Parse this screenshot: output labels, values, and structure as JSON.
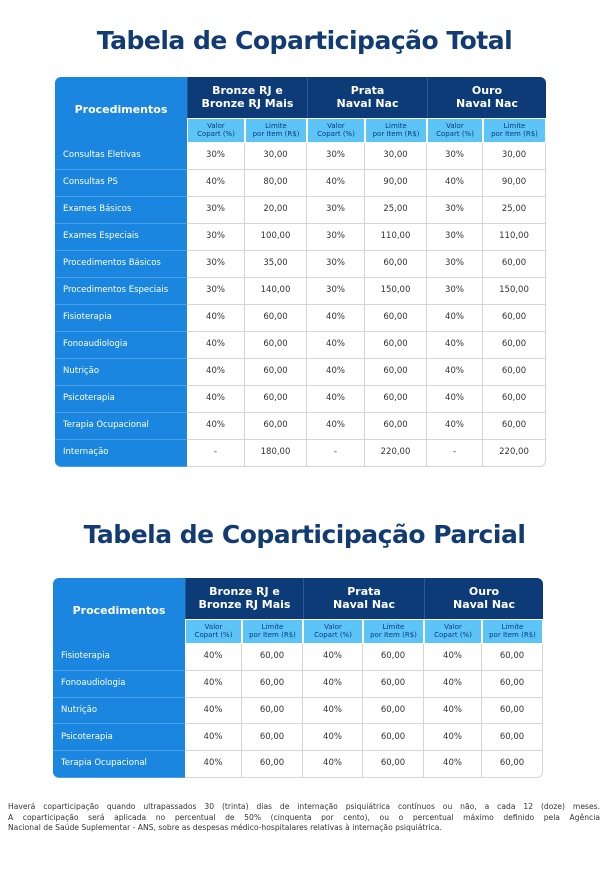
{
  "tables": [
    {
      "title": "Tabela de Coparticipação Total",
      "header": {
        "procedure": "Procedimentos",
        "groups": [
          [
            "Bronze RJ e",
            "Bronze RJ Mais"
          ],
          [
            "Prata",
            "Naval Nac"
          ],
          [
            "Ouro",
            "Naval Nac"
          ]
        ],
        "sub": [
          [
            "Valor",
            "Copart (%)"
          ],
          [
            "Limite",
            "por Item (R$)"
          ]
        ]
      },
      "rows": [
        [
          "Consultas Eletivas",
          "30%",
          "30,00",
          "30%",
          "30,00",
          "30%",
          "30,00"
        ],
        [
          "Consultas PS",
          "40%",
          "80,00",
          "40%",
          "90,00",
          "40%",
          "90,00"
        ],
        [
          "Exames Básicos",
          "30%",
          "20,00",
          "30%",
          "25,00",
          "30%",
          "25,00"
        ],
        [
          "Exames Especiais",
          "30%",
          "100,00",
          "30%",
          "110,00",
          "30%",
          "110,00"
        ],
        [
          "Procedimentos Básicos",
          "30%",
          "35,00",
          "30%",
          "60,00",
          "30%",
          "60,00"
        ],
        [
          "Procedimentos Especiais",
          "30%",
          "140,00",
          "30%",
          "150,00",
          "30%",
          "150,00"
        ],
        [
          "Fisioterapia",
          "40%",
          "60,00",
          "40%",
          "60,00",
          "40%",
          "60,00"
        ],
        [
          "Fonoaudiologia",
          "40%",
          "60,00",
          "40%",
          "60,00",
          "40%",
          "60,00"
        ],
        [
          "Nutrição",
          "40%",
          "60,00",
          "40%",
          "60,00",
          "40%",
          "60,00"
        ],
        [
          "Psicoterapia",
          "40%",
          "60,00",
          "40%",
          "60,00",
          "40%",
          "60,00"
        ],
        [
          "Terapia Ocupacional",
          "40%",
          "60,00",
          "40%",
          "60,00",
          "40%",
          "60,00"
        ],
        [
          "Internação",
          "-",
          "180,00",
          "-",
          "220,00",
          "-",
          "220,00"
        ]
      ]
    },
    {
      "title": "Tabela de Coparticipação Parcial",
      "header": {
        "procedure": "Procedimentos",
        "groups": [
          [
            "Bronze RJ e",
            "Bronze RJ Mais"
          ],
          [
            "Prata",
            "Naval Nac"
          ],
          [
            "Ouro",
            "Naval Nac"
          ]
        ],
        "sub": [
          [
            "Valor",
            "Copart (%)"
          ],
          [
            "Limite",
            "por Item (R$)"
          ]
        ]
      },
      "rows": [
        [
          "Fisioterapia",
          "40%",
          "60,00",
          "40%",
          "60,00",
          "40%",
          "60,00"
        ],
        [
          "Fonoaudiologia",
          "40%",
          "60,00",
          "40%",
          "60,00",
          "40%",
          "60,00"
        ],
        [
          "Nutrição",
          "40%",
          "60,00",
          "40%",
          "60,00",
          "40%",
          "60,00"
        ],
        [
          "Psicoterapia",
          "40%",
          "60,00",
          "40%",
          "60,00",
          "40%",
          "60,00"
        ],
        [
          "Terapia Ocupacional",
          "40%",
          "60,00",
          "40%",
          "60,00",
          "40%",
          "60,00"
        ]
      ]
    }
  ],
  "footnote": [
    "Haverá coparticipação quando ultrapassados 30 (trinta) dias de internação psiquiátrica contínuos ou não, a cada 12 (doze) meses.",
    "A coparticipação será aplicada no percentual de 50% (cinquenta por cento), ou o percentual máximo definido pela Agência",
    "Nacional de Saúde Suplementar - ANS, sobre as despesas médico-hospitalares relativas à internação psiquiátrica."
  ]
}
